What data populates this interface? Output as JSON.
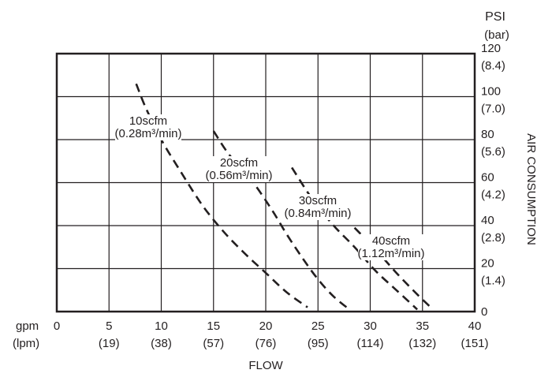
{
  "chart_data": {
    "type": "line",
    "xlabel": "FLOW",
    "ylabel": "AIR CONSUMPTION",
    "x_unit_primary": "gpm",
    "x_unit_secondary": "(lpm)",
    "y_unit_primary": "PSI",
    "y_unit_secondary": "(bar)",
    "xlim": [
      0,
      40
    ],
    "ylim": [
      0,
      120
    ],
    "grid": true,
    "x_ticks": [
      {
        "value": 0,
        "label": "0",
        "sub": ""
      },
      {
        "value": 5,
        "label": "5",
        "sub": "(19)"
      },
      {
        "value": 10,
        "label": "10",
        "sub": "(38)"
      },
      {
        "value": 15,
        "label": "15",
        "sub": "(57)"
      },
      {
        "value": 20,
        "label": "20",
        "sub": "(76)"
      },
      {
        "value": 25,
        "label": "25",
        "sub": "(95)"
      },
      {
        "value": 30,
        "label": "30",
        "sub": "(114)"
      },
      {
        "value": 35,
        "label": "35",
        "sub": "(132)"
      },
      {
        "value": 40,
        "label": "40",
        "sub": "(151)"
      }
    ],
    "y_ticks": [
      {
        "value": 0,
        "label": "0",
        "sub": ""
      },
      {
        "value": 20,
        "label": "20",
        "sub": "(1.4)"
      },
      {
        "value": 40,
        "label": "40",
        "sub": "(2.8)"
      },
      {
        "value": 60,
        "label": "60",
        "sub": "(4.2)"
      },
      {
        "value": 80,
        "label": "80",
        "sub": "(5.6)"
      },
      {
        "value": 100,
        "label": "100",
        "sub": "(7.0)"
      },
      {
        "value": 120,
        "label": "120",
        "sub": "(8.4)"
      }
    ],
    "series": [
      {
        "name": "10scfm",
        "name_sub": "(0.28m³/min)",
        "points": [
          [
            7.6,
            106
          ],
          [
            8.5,
            95
          ],
          [
            10,
            80
          ],
          [
            12,
            64
          ],
          [
            14,
            49
          ],
          [
            16,
            37
          ],
          [
            18,
            27
          ],
          [
            20,
            18
          ],
          [
            22,
            9
          ],
          [
            24,
            2
          ]
        ]
      },
      {
        "name": "20scfm",
        "name_sub": "(0.56m³/min)",
        "points": [
          [
            15,
            84
          ],
          [
            16.5,
            73
          ],
          [
            18.5,
            62
          ],
          [
            20.5,
            48
          ],
          [
            22,
            36
          ],
          [
            23.5,
            25
          ],
          [
            25,
            15
          ],
          [
            26.5,
            7
          ],
          [
            28,
            1
          ]
        ]
      },
      {
        "name": "30scfm",
        "name_sub": "(0.84m³/min)",
        "points": [
          [
            22.5,
            67
          ],
          [
            24.5,
            52
          ],
          [
            26.5,
            40
          ],
          [
            28.5,
            30
          ],
          [
            30.5,
            19
          ],
          [
            32.5,
            10
          ],
          [
            34.5,
            1
          ]
        ]
      },
      {
        "name": "40scfm",
        "name_sub": "(1.12m³/min)",
        "points": [
          [
            28.5,
            39
          ],
          [
            30.5,
            29
          ],
          [
            32.5,
            18
          ],
          [
            34.5,
            8
          ],
          [
            36,
            1
          ]
        ]
      }
    ]
  }
}
